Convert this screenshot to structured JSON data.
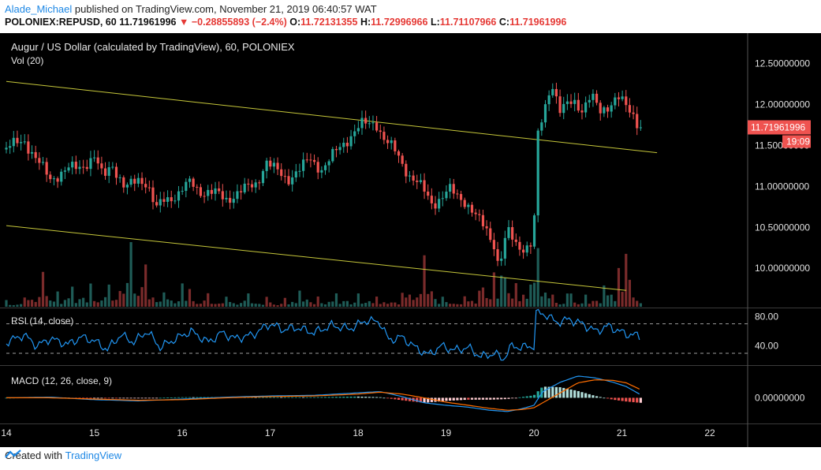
{
  "header": {
    "author": "Alade_Michael",
    "published_text": "published on TradingView.com, November 21, 2019 06:40:57 WAT",
    "symbol": "POLONIEX:REPUSD, 60",
    "last": "11.71961996",
    "change": "−0.28855893 (−2.4%)",
    "o_label": "O:",
    "o_val": "11.72131355",
    "h_label": "H:",
    "h_val": "11.72996966",
    "l_label": "L:",
    "l_val": "11.71107966",
    "c_label": "C:",
    "c_val": "11.71961996"
  },
  "pane_labels": {
    "main_title": "Augur / US Dollar (calculated by TradingView), 60, POLONIEX",
    "vol": "Vol (20)",
    "rsi": "RSI (14, close)",
    "macd": "MACD (12, 26, close, 9)"
  },
  "footer": {
    "created_with": "Created with",
    "brand": "TradingView"
  },
  "colors": {
    "up": "#26a69a",
    "down": "#ef5350",
    "trendline": "#c5c63a",
    "rsi_line": "#2196f3",
    "macd_line": "#2196f3",
    "signal_line": "#ff6d00",
    "background": "#000000",
    "axis_text": "#e0e0e0"
  },
  "chart_data": [
    {
      "type": "candlestick",
      "title": "Augur / US Dollar (calculated by TradingView), 60, POLONIEX",
      "x_ticks": [
        "14",
        "15",
        "16",
        "17",
        "18",
        "19",
        "20",
        "21",
        "22"
      ],
      "y_ticks": [
        "12.50000000",
        "12.00000000",
        "11.50000000",
        "11.00000000",
        "10.50000000",
        "10.00000000"
      ],
      "ylim": [
        9.55,
        12.85
      ],
      "last_price_label": "11.71961996",
      "countdown_label": "19:09",
      "trendlines": [
        {
          "from": {
            "day": 14.0,
            "price": 12.28
          },
          "to": {
            "day": 21.4,
            "price": 11.41
          }
        },
        {
          "from": {
            "day": 14.0,
            "price": 10.52
          },
          "to": {
            "day": 21.05,
            "price": 9.73
          }
        }
      ],
      "close_path": [
        [
          14.0,
          11.45
        ],
        [
          14.2,
          11.58
        ],
        [
          14.35,
          11.3
        ],
        [
          14.5,
          11.1
        ],
        [
          14.7,
          11.2
        ],
        [
          14.85,
          11.25
        ],
        [
          15.0,
          11.35
        ],
        [
          15.1,
          11.1
        ],
        [
          15.2,
          11.3
        ],
        [
          15.35,
          10.95
        ],
        [
          15.5,
          11.1
        ],
        [
          15.6,
          11.05
        ],
        [
          15.7,
          10.7
        ],
        [
          15.8,
          10.85
        ],
        [
          15.95,
          10.9
        ],
        [
          16.1,
          11.05
        ],
        [
          16.2,
          10.95
        ],
        [
          16.4,
          10.9
        ],
        [
          16.5,
          10.85
        ],
        [
          16.7,
          10.95
        ],
        [
          16.85,
          11.05
        ],
        [
          16.95,
          11.3
        ],
        [
          17.05,
          11.2
        ],
        [
          17.2,
          11.1
        ],
        [
          17.35,
          11.2
        ],
        [
          17.45,
          11.35
        ],
        [
          17.6,
          11.2
        ],
        [
          17.8,
          11.5
        ],
        [
          17.95,
          11.65
        ],
        [
          18.05,
          11.75
        ],
        [
          18.2,
          11.8
        ],
        [
          18.3,
          11.55
        ],
        [
          18.45,
          11.4
        ],
        [
          18.6,
          11.1
        ],
        [
          18.75,
          10.95
        ],
        [
          18.85,
          10.8
        ],
        [
          18.95,
          10.85
        ],
        [
          19.05,
          10.95
        ],
        [
          19.2,
          10.85
        ],
        [
          19.35,
          10.6
        ],
        [
          19.45,
          10.5
        ],
        [
          19.55,
          10.3
        ],
        [
          19.6,
          10.0
        ],
        [
          19.7,
          10.45
        ],
        [
          19.8,
          10.3
        ],
        [
          19.9,
          10.25
        ],
        [
          20.0,
          10.3
        ],
        [
          20.02,
          11.5
        ],
        [
          20.1,
          11.85
        ],
        [
          20.2,
          12.3
        ],
        [
          20.3,
          11.9
        ],
        [
          20.45,
          12.05
        ],
        [
          20.55,
          11.95
        ],
        [
          20.65,
          12.1
        ],
        [
          20.75,
          11.9
        ],
        [
          20.85,
          12.0
        ],
        [
          20.95,
          12.1
        ],
        [
          21.05,
          11.95
        ],
        [
          21.15,
          11.85
        ],
        [
          21.2,
          11.72
        ]
      ],
      "volume_relative": [
        [
          14.0,
          0.1
        ],
        [
          14.2,
          0.12
        ],
        [
          14.4,
          0.55
        ],
        [
          14.6,
          0.2
        ],
        [
          14.75,
          0.3
        ],
        [
          14.95,
          0.35
        ],
        [
          15.15,
          0.28
        ],
        [
          15.4,
          1.0
        ],
        [
          15.6,
          0.6
        ],
        [
          15.8,
          0.2
        ],
        [
          16.0,
          0.35
        ],
        [
          16.1,
          0.25
        ],
        [
          16.3,
          0.2
        ],
        [
          16.5,
          0.15
        ],
        [
          16.75,
          0.2
        ],
        [
          16.95,
          0.15
        ],
        [
          17.15,
          0.12
        ],
        [
          17.35,
          0.25
        ],
        [
          17.55,
          0.15
        ],
        [
          17.75,
          0.2
        ],
        [
          18.0,
          0.2
        ],
        [
          18.2,
          0.15
        ],
        [
          18.5,
          0.2
        ],
        [
          18.75,
          0.78
        ],
        [
          18.95,
          0.15
        ],
        [
          19.2,
          0.15
        ],
        [
          19.4,
          0.25
        ],
        [
          19.55,
          0.52
        ],
        [
          19.65,
          0.45
        ],
        [
          19.8,
          0.35
        ],
        [
          20.03,
          0.95
        ],
        [
          20.2,
          0.18
        ],
        [
          20.4,
          0.2
        ],
        [
          20.6,
          0.18
        ],
        [
          20.8,
          0.32
        ],
        [
          20.95,
          0.5
        ],
        [
          21.03,
          0.95
        ],
        [
          21.1,
          0.3
        ]
      ]
    },
    {
      "type": "line",
      "title": "RSI (14, close)",
      "y_ticks": [
        "80.00",
        "40.00"
      ],
      "ylim": [
        15,
        90
      ],
      "bands": [
        70,
        30
      ],
      "series": [
        {
          "name": "RSI",
          "points": [
            [
              14.0,
              45
            ],
            [
              14.2,
              55
            ],
            [
              14.35,
              40
            ],
            [
              14.5,
              50
            ],
            [
              14.7,
              42
            ],
            [
              14.85,
              52
            ],
            [
              15.0,
              47
            ],
            [
              15.15,
              35
            ],
            [
              15.3,
              55
            ],
            [
              15.45,
              45
            ],
            [
              15.6,
              60
            ],
            [
              15.75,
              38
            ],
            [
              15.9,
              48
            ],
            [
              16.1,
              60
            ],
            [
              16.3,
              45
            ],
            [
              16.45,
              58
            ],
            [
              16.6,
              50
            ],
            [
              16.8,
              55
            ],
            [
              17.0,
              70
            ],
            [
              17.15,
              62
            ],
            [
              17.3,
              65
            ],
            [
              17.5,
              58
            ],
            [
              17.7,
              68
            ],
            [
              17.9,
              63
            ],
            [
              18.1,
              75
            ],
            [
              18.25,
              72
            ],
            [
              18.35,
              48
            ],
            [
              18.5,
              52
            ],
            [
              18.65,
              38
            ],
            [
              18.8,
              28
            ],
            [
              18.95,
              40
            ],
            [
              19.1,
              34
            ],
            [
              19.25,
              38
            ],
            [
              19.4,
              25
            ],
            [
              19.55,
              30
            ],
            [
              19.65,
              22
            ],
            [
              19.75,
              40
            ],
            [
              19.85,
              38
            ],
            [
              20.0,
              40
            ],
            [
              20.02,
              85
            ],
            [
              20.15,
              82
            ],
            [
              20.25,
              72
            ],
            [
              20.4,
              76
            ],
            [
              20.55,
              70
            ],
            [
              20.7,
              60
            ],
            [
              20.85,
              67
            ],
            [
              20.95,
              61
            ],
            [
              21.05,
              56
            ],
            [
              21.15,
              55
            ],
            [
              21.2,
              52
            ]
          ]
        }
      ]
    },
    {
      "type": "line",
      "title": "MACD (12, 26, close, 9)",
      "y_ticks": [
        "0.00000000"
      ],
      "ylim": [
        -0.4,
        0.5
      ],
      "series": [
        {
          "name": "MACD",
          "points": [
            [
              14.0,
              0.0
            ],
            [
              14.5,
              0.01
            ],
            [
              15.0,
              -0.03
            ],
            [
              15.5,
              -0.05
            ],
            [
              16.0,
              -0.02
            ],
            [
              16.5,
              0.01
            ],
            [
              17.0,
              0.03
            ],
            [
              17.5,
              0.04
            ],
            [
              18.0,
              0.08
            ],
            [
              18.25,
              0.1
            ],
            [
              18.5,
              0.02
            ],
            [
              18.75,
              -0.08
            ],
            [
              19.0,
              -0.12
            ],
            [
              19.25,
              -0.15
            ],
            [
              19.5,
              -0.2
            ],
            [
              19.7,
              -0.22
            ],
            [
              19.85,
              -0.18
            ],
            [
              20.0,
              -0.12
            ],
            [
              20.1,
              0.1
            ],
            [
              20.3,
              0.25
            ],
            [
              20.5,
              0.35
            ],
            [
              20.7,
              0.32
            ],
            [
              20.9,
              0.25
            ],
            [
              21.05,
              0.18
            ],
            [
              21.2,
              0.06
            ]
          ]
        },
        {
          "name": "Signal",
          "points": [
            [
              14.0,
              0.0
            ],
            [
              14.5,
              0.0
            ],
            [
              15.0,
              -0.02
            ],
            [
              15.5,
              -0.04
            ],
            [
              16.0,
              -0.03
            ],
            [
              16.5,
              0.0
            ],
            [
              17.0,
              0.02
            ],
            [
              17.5,
              0.03
            ],
            [
              18.0,
              0.06
            ],
            [
              18.25,
              0.09
            ],
            [
              18.5,
              0.06
            ],
            [
              18.75,
              0.0
            ],
            [
              19.0,
              -0.07
            ],
            [
              19.25,
              -0.12
            ],
            [
              19.5,
              -0.17
            ],
            [
              19.7,
              -0.2
            ],
            [
              19.85,
              -0.19
            ],
            [
              20.0,
              -0.16
            ],
            [
              20.1,
              -0.08
            ],
            [
              20.3,
              0.08
            ],
            [
              20.5,
              0.24
            ],
            [
              20.7,
              0.29
            ],
            [
              20.9,
              0.28
            ],
            [
              21.05,
              0.24
            ],
            [
              21.2,
              0.14
            ]
          ]
        }
      ]
    }
  ]
}
